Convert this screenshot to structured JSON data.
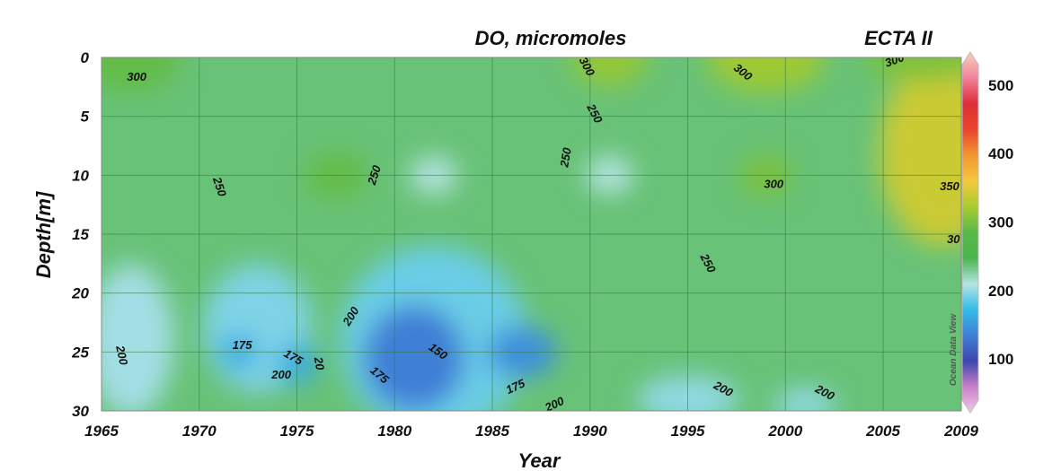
{
  "chart_data": {
    "type": "heatmap",
    "title": "DO, micromoles",
    "subtitle": "ECTA II",
    "xlabel": "Year",
    "ylabel": "Depth[m]",
    "x_ticks": [
      "1965",
      "1970",
      "1975",
      "1980",
      "1985",
      "1990",
      "1995",
      "2000",
      "2005",
      "2009"
    ],
    "y_ticks": [
      "0",
      "5",
      "10",
      "15",
      "20",
      "25",
      "30"
    ],
    "xlim": [
      1965,
      2009
    ],
    "ylim": [
      30,
      0
    ],
    "colorbar": {
      "ticks": [
        "100",
        "200",
        "300",
        "400",
        "500"
      ],
      "range": [
        40,
        530
      ],
      "colors": [
        "#f2c9e8",
        "#c97fc9",
        "#3d46ae",
        "#3f7fd6",
        "#33bce8",
        "#b6e4e4",
        "#49b54c",
        "#58b94a",
        "#aacc2f",
        "#f5c73d",
        "#f29530",
        "#e9442c",
        "#de2e38",
        "#f2839a",
        "#f7d1b8"
      ],
      "label": "Ocean Data View"
    },
    "background_value": 240,
    "features": [
      {
        "x": 1966.5,
        "y": 0,
        "rx": 2.5,
        "ry": 3.0,
        "value": 290
      },
      {
        "x": 1991,
        "y": 0,
        "rx": 2.0,
        "ry": 2.5,
        "value": 310
      },
      {
        "x": 1999,
        "y": 0,
        "rx": 3.0,
        "ry": 3.0,
        "value": 315
      },
      {
        "x": 1977,
        "y": 10,
        "rx": 1.6,
        "ry": 2.0,
        "value": 290
      },
      {
        "x": 1999,
        "y": 10,
        "rx": 1.3,
        "ry": 1.8,
        "value": 300
      },
      {
        "x": 2008,
        "y": 8,
        "rx": 3.2,
        "ry": 8.0,
        "value": 335
      },
      {
        "x": 2007,
        "y": 0,
        "rx": 3.0,
        "ry": 2.0,
        "value": 300
      },
      {
        "x": 1982,
        "y": 10,
        "rx": 1.2,
        "ry": 1.6,
        "value": 215
      },
      {
        "x": 1991,
        "y": 10,
        "rx": 1.2,
        "ry": 1.6,
        "value": 215
      },
      {
        "x": 1966.5,
        "y": 24,
        "rx": 2.2,
        "ry": 6.5,
        "value": 210
      },
      {
        "x": 1973,
        "y": 23,
        "rx": 2.8,
        "ry": 5.5,
        "value": 200
      },
      {
        "x": 1972,
        "y": 25,
        "rx": 1.0,
        "ry": 1.5,
        "value": 170
      },
      {
        "x": 1975,
        "y": 26,
        "rx": 1.0,
        "ry": 1.8,
        "value": 170
      },
      {
        "x": 1982,
        "y": 24,
        "rx": 4.8,
        "ry": 8.0,
        "value": 195
      },
      {
        "x": 1981,
        "y": 25.5,
        "rx": 2.6,
        "ry": 4.5,
        "value": 145
      },
      {
        "x": 1986.5,
        "y": 25,
        "rx": 1.8,
        "ry": 2.2,
        "value": 155
      },
      {
        "x": 1995,
        "y": 29,
        "rx": 2.6,
        "ry": 2.0,
        "value": 205
      },
      {
        "x": 2001,
        "y": 29.5,
        "rx": 1.6,
        "ry": 1.4,
        "value": 205
      }
    ],
    "contour_labels": [
      {
        "x": 1966.8,
        "y": 1.7,
        "text": "300",
        "angle": 0
      },
      {
        "x": 1989.8,
        "y": 0.8,
        "text": "300",
        "angle": 62
      },
      {
        "x": 1997.8,
        "y": 1.3,
        "text": "300",
        "angle": 38
      },
      {
        "x": 2005.6,
        "y": 0.3,
        "text": "300",
        "angle": -20
      },
      {
        "x": 1990.2,
        "y": 4.8,
        "text": "250",
        "angle": 62
      },
      {
        "x": 1971.0,
        "y": 11.0,
        "text": "250",
        "angle": 72
      },
      {
        "x": 1979.0,
        "y": 10.0,
        "text": "250",
        "angle": -72
      },
      {
        "x": 1988.8,
        "y": 8.5,
        "text": "250",
        "angle": -80
      },
      {
        "x": 1999.4,
        "y": 10.8,
        "text": "300",
        "angle": 0
      },
      {
        "x": 2008.4,
        "y": 11.0,
        "text": "350",
        "angle": 0
      },
      {
        "x": 2008.6,
        "y": 15.5,
        "text": "30",
        "angle": 0
      },
      {
        "x": 1996.0,
        "y": 17.5,
        "text": "250",
        "angle": 62
      },
      {
        "x": 1966.0,
        "y": 25.3,
        "text": "200",
        "angle": 78
      },
      {
        "x": 1977.8,
        "y": 22.0,
        "text": "200",
        "angle": -58
      },
      {
        "x": 1972.2,
        "y": 24.5,
        "text": "175",
        "angle": 0
      },
      {
        "x": 1974.2,
        "y": 27.0,
        "text": "200",
        "angle": 0
      },
      {
        "x": 1974.8,
        "y": 25.5,
        "text": "175",
        "angle": 30
      },
      {
        "x": 1976.1,
        "y": 26.0,
        "text": "20",
        "angle": 80
      },
      {
        "x": 1979.2,
        "y": 27.0,
        "text": "175",
        "angle": 40
      },
      {
        "x": 1982.2,
        "y": 25.0,
        "text": "150",
        "angle": 35
      },
      {
        "x": 1986.2,
        "y": 28.0,
        "text": "175",
        "angle": -25
      },
      {
        "x": 1988.2,
        "y": 29.5,
        "text": "200",
        "angle": -25
      },
      {
        "x": 1996.8,
        "y": 28.2,
        "text": "200",
        "angle": 28
      },
      {
        "x": 2002.0,
        "y": 28.5,
        "text": "200",
        "angle": 28
      }
    ],
    "grid": true
  }
}
